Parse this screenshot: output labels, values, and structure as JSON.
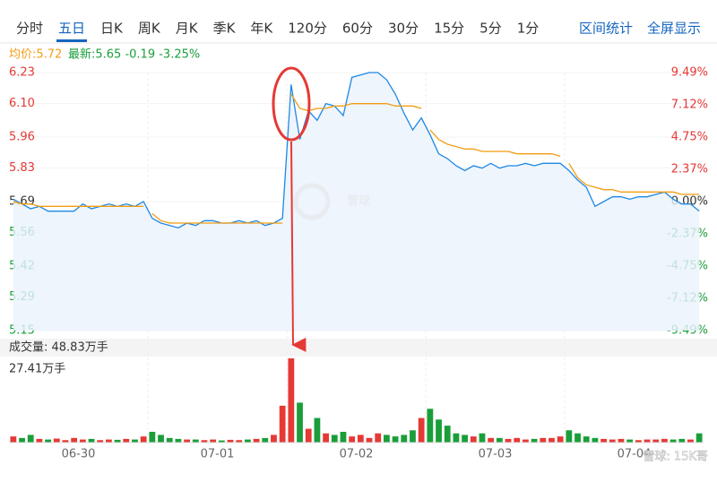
{
  "tabs": [
    "分时",
    "五日",
    "日K",
    "周K",
    "月K",
    "季K",
    "年K",
    "120分",
    "60分",
    "30分",
    "15分",
    "5分",
    "1分"
  ],
  "active_tab": 1,
  "right_tabs": [
    "区间统计",
    "全屏显示"
  ],
  "chart_data": {
    "type": "line",
    "avg_text": "均价:5.72",
    "latest_text": "最新:5.65 -0.19 -3.25%",
    "volume_title": "成交量: 48.83万手",
    "volume_max_label": "27.41万手",
    "watermark": "雪球",
    "watermark_credit": "雪球: 15K哥",
    "ylim": [
      5.15,
      6.23
    ],
    "yticks": [
      6.23,
      {
        "value": 6.1,
        "label": "6.10"
      },
      5.96,
      5.83,
      5.69,
      5.56,
      5.42,
      5.29,
      5.15
    ],
    "y2lim": [
      -9.49,
      9.49
    ],
    "y2ticks": [
      {
        "value": 9.49,
        "label": "9.49%"
      },
      {
        "value": 7.12,
        "label": "7.12%"
      },
      {
        "value": 4.75,
        "label": "4.75%"
      },
      {
        "value": 2.37,
        "label": "2.37%"
      },
      {
        "value": 0,
        "label": "0.00%"
      },
      {
        "value": -2.37,
        "label": "-2.37%"
      },
      {
        "value": -4.75,
        "label": "-4.75%"
      },
      {
        "value": -7.12,
        "label": "-7.12%"
      },
      {
        "value": -9.49,
        "label": "-9.49%"
      }
    ],
    "xticks": [
      {
        "value": 7.5,
        "label": "06-30"
      },
      {
        "value": 23.5,
        "label": "07-01"
      },
      {
        "value": 39.5,
        "label": "07-02"
      },
      {
        "value": 55.5,
        "label": "07-03"
      },
      {
        "value": 71.5,
        "label": "07-04"
      }
    ],
    "up_color": "#e53935",
    "down_color": "#1a9e3a",
    "series": [
      {
        "name": "最新",
        "color": "#1e88e5",
        "values": [
          5.7,
          5.68,
          5.66,
          5.67,
          5.65,
          5.65,
          5.65,
          5.65,
          5.68,
          5.66,
          5.67,
          5.68,
          5.67,
          5.68,
          5.67,
          5.69,
          5.62,
          5.6,
          5.59,
          5.58,
          5.6,
          5.59,
          5.61,
          5.61,
          5.6,
          5.6,
          5.61,
          5.6,
          5.61,
          5.59,
          5.6,
          5.62,
          6.18,
          5.95,
          6.07,
          6.03,
          6.1,
          6.09,
          6.05,
          6.21,
          6.22,
          6.23,
          6.23,
          6.2,
          6.14,
          6.06,
          5.99,
          6.04,
          5.97,
          5.89,
          5.87,
          5.84,
          5.82,
          5.84,
          5.83,
          5.85,
          5.83,
          5.84,
          5.84,
          5.85,
          5.84,
          5.85,
          5.85,
          5.85,
          5.82,
          5.78,
          5.75,
          5.67,
          5.69,
          5.71,
          5.71,
          5.7,
          5.71,
          5.71,
          5.72,
          5.73,
          5.7,
          5.68,
          5.68,
          5.65
        ]
      },
      {
        "name": "均价",
        "color": "#f39c12",
        "values": [
          5.69,
          5.68,
          5.68,
          5.67,
          5.67,
          5.67,
          5.67,
          5.67,
          5.67,
          5.67,
          5.67,
          5.67,
          5.67,
          5.67,
          5.67,
          5.67,
          5.64,
          5.61,
          5.6,
          5.6,
          5.6,
          5.6,
          5.6,
          5.6,
          5.6,
          5.6,
          5.6,
          5.6,
          5.6,
          5.6,
          5.6,
          5.6,
          6.14,
          6.08,
          6.07,
          6.08,
          6.08,
          6.09,
          6.09,
          6.1,
          6.1,
          6.1,
          6.1,
          6.1,
          6.09,
          6.09,
          6.09,
          6.08,
          5.99,
          5.95,
          5.93,
          5.92,
          5.91,
          5.91,
          5.9,
          5.9,
          5.9,
          5.9,
          5.89,
          5.89,
          5.89,
          5.89,
          5.89,
          5.88,
          5.85,
          5.79,
          5.76,
          5.75,
          5.74,
          5.74,
          5.73,
          5.73,
          5.73,
          5.73,
          5.73,
          5.73,
          5.73,
          5.72,
          5.72,
          5.72
        ]
      }
    ],
    "volume": [
      2.0,
      1.5,
      2.5,
      1.2,
      1.0,
      1.3,
      0.8,
      1.5,
      1.0,
      1.2,
      0.8,
      1.0,
      0.9,
      1.2,
      1.0,
      2.0,
      3.5,
      2.5,
      1.5,
      1.2,
      1.0,
      1.0,
      0.8,
      1.0,
      0.7,
      0.9,
      0.8,
      1.0,
      1.2,
      1.5,
      2.5,
      12.0,
      27.41,
      13.0,
      4.5,
      8.0,
      3.0,
      2.5,
      3.5,
      2.0,
      2.5,
      1.5,
      3.0,
      2.5,
      2.0,
      2.5,
      4.0,
      8.0,
      11.0,
      7.5,
      5.5,
      3.0,
      2.5,
      2.0,
      3.0,
      1.5,
      1.5,
      1.2,
      1.5,
      1.0,
      1.2,
      1.5,
      1.5,
      2.0,
      4.0,
      3.0,
      2.0,
      1.5,
      1.2,
      1.0,
      1.2,
      1.0,
      0.8,
      1.0,
      1.0,
      1.2,
      1.0,
      1.2,
      1.0,
      3.0
    ],
    "volume_lim": [
      0,
      27.41
    ]
  }
}
